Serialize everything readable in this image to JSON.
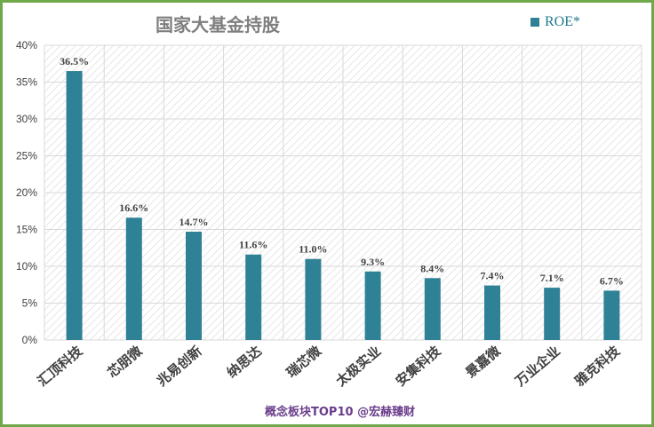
{
  "chart_data": {
    "type": "bar",
    "title": "国家大基金持股",
    "categories": [
      "汇顶科技",
      "芯朋微",
      "兆易创新",
      "纳思达",
      "瑞芯微",
      "太极实业",
      "安集科技",
      "景嘉微",
      "万业企业",
      "雅克科技"
    ],
    "series": [
      {
        "name": "ROE*",
        "values": [
          36.5,
          16.6,
          14.7,
          11.6,
          11.0,
          9.3,
          8.4,
          7.4,
          7.1,
          6.7
        ]
      }
    ],
    "data_labels": [
      "36.5%",
      "16.6%",
      "14.7%",
      "11.6%",
      "11.0%",
      "9.3%",
      "8.4%",
      "7.4%",
      "7.1%",
      "6.7%"
    ],
    "y_ticks": [
      "0%",
      "5%",
      "10%",
      "15%",
      "20%",
      "25%",
      "30%",
      "35%",
      "40%"
    ],
    "ylim": [
      0,
      40
    ],
    "grid": true,
    "legend_position": "top-right",
    "colors": {
      "bar": "#2f8196",
      "grid": "#d9d9d9",
      "frame": "#6fa84a",
      "hatch": "#e3e3e3"
    }
  },
  "footer": "概念板块TOP10 @宏赫臻财"
}
